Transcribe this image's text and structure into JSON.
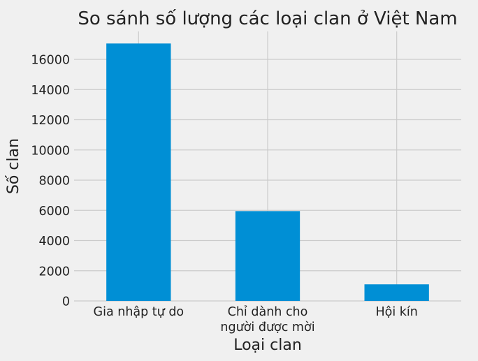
{
  "chart_data": {
    "type": "bar",
    "title": "So sánh số lượng các loại clan ở Việt Nam",
    "xlabel": "Loại clan",
    "ylabel": "Số clan",
    "categories": [
      [
        "Gia nhập tự do"
      ],
      [
        "Chỉ dành cho",
        "người được mời"
      ],
      [
        "Hội kín"
      ]
    ],
    "values": [
      17050,
      5950,
      1100
    ],
    "ylim": [
      0,
      17850
    ],
    "yticks": [
      0,
      2000,
      4000,
      6000,
      8000,
      10000,
      12000,
      14000,
      16000
    ],
    "grid": true,
    "style": "fivethirtyeight"
  },
  "colors": {
    "background": "#f0f0f0",
    "bar": "#008fd5",
    "grid": "#cbcbcb",
    "text": "#222222"
  }
}
